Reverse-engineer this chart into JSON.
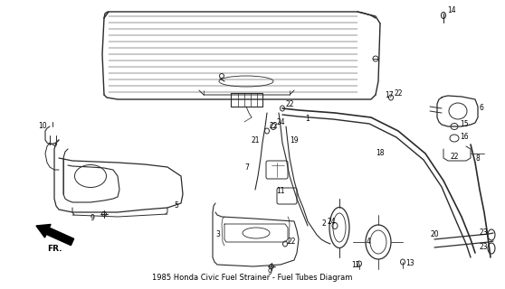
{
  "title": "1985 Honda Civic Fuel Strainer - Fuel Tubes Diagram",
  "bg_color": "#ffffff",
  "line_color": "#2a2a2a",
  "text_color": "#000000",
  "fig_width": 5.58,
  "fig_height": 3.2,
  "dpi": 100
}
